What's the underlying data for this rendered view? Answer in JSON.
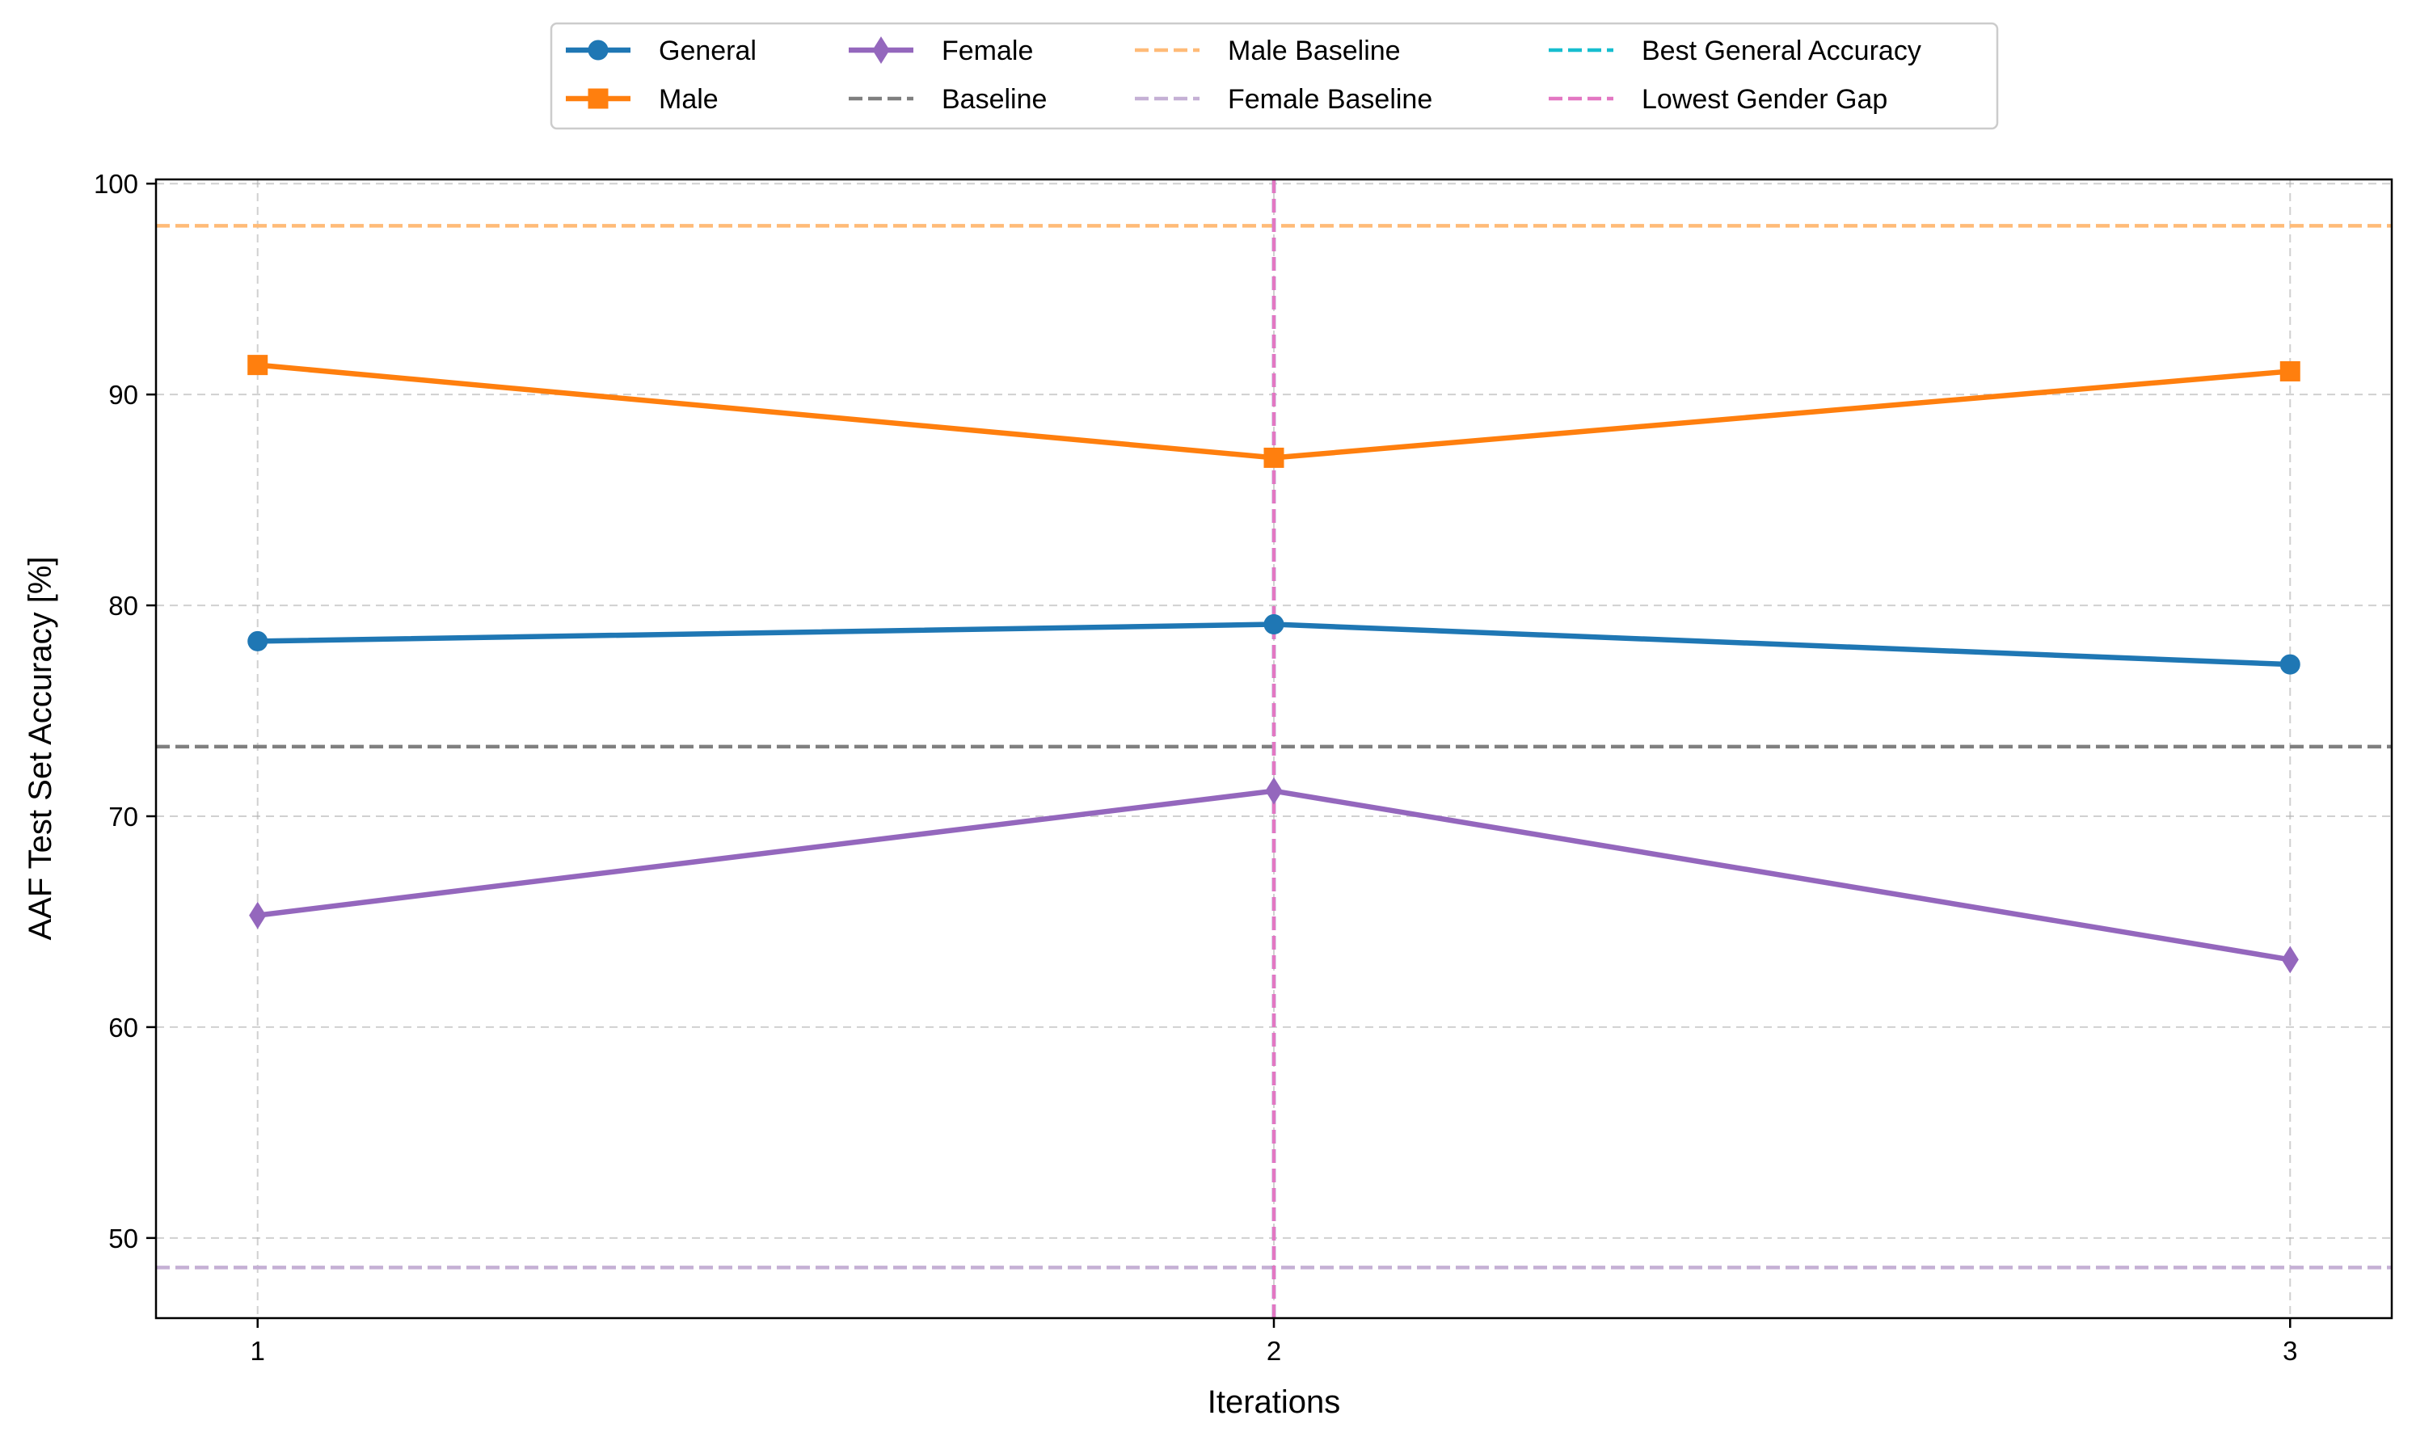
{
  "chart_data": {
    "type": "line",
    "title": "",
    "xlabel": "Iterations",
    "ylabel": "AAF Test Set Accuracy [%]",
    "x": [
      1,
      2,
      3
    ],
    "x_tick_labels": [
      "1",
      "2",
      "3"
    ],
    "xlim": [
      0.9,
      3.1
    ],
    "ylim": [
      46.2,
      100.2
    ],
    "y_ticks": [
      50,
      60,
      70,
      80,
      90,
      100
    ],
    "y_tick_labels": [
      "50",
      "60",
      "70",
      "80",
      "90",
      "100"
    ],
    "grid": true,
    "legend_position": "top-center, outside plot, 4 columns",
    "series": [
      {
        "name": "General",
        "values": [
          78.3,
          79.1,
          77.2
        ],
        "color": "#1f77b4",
        "marker": "circle"
      },
      {
        "name": "Male",
        "values": [
          91.4,
          87.0,
          91.1
        ],
        "color": "#ff7f0e",
        "marker": "square"
      },
      {
        "name": "Female",
        "values": [
          65.3,
          71.2,
          63.2
        ],
        "color": "#9467bd",
        "marker": "diamond"
      }
    ],
    "reference_lines": [
      {
        "name": "Baseline",
        "orientation": "horizontal",
        "value": 73.3,
        "color": "#7f7f7f",
        "style": "dashed"
      },
      {
        "name": "Male Baseline",
        "orientation": "horizontal",
        "value": 98.0,
        "color": "#ffbb78",
        "style": "dashed"
      },
      {
        "name": "Female Baseline",
        "orientation": "horizontal",
        "value": 48.6,
        "color": "#c5b0d5",
        "style": "dashed"
      },
      {
        "name": "Best General Accuracy",
        "orientation": "vertical",
        "value": 2,
        "color": "#17becf",
        "style": "dashed"
      },
      {
        "name": "Lowest Gender Gap",
        "orientation": "vertical",
        "value": 2,
        "color": "#e377c2",
        "style": "dashed"
      }
    ],
    "legend_entries": [
      {
        "label": "General",
        "ref": "series",
        "index": 0
      },
      {
        "label": "Male",
        "ref": "series",
        "index": 1
      },
      {
        "label": "Female",
        "ref": "series",
        "index": 2
      },
      {
        "label": "Baseline",
        "ref": "line",
        "index": 0
      },
      {
        "label": "Male Baseline",
        "ref": "line",
        "index": 1
      },
      {
        "label": "Female Baseline",
        "ref": "line",
        "index": 2
      },
      {
        "label": "Best General Accuracy",
        "ref": "line",
        "index": 3
      },
      {
        "label": "Lowest Gender Gap",
        "ref": "line",
        "index": 4
      }
    ]
  }
}
